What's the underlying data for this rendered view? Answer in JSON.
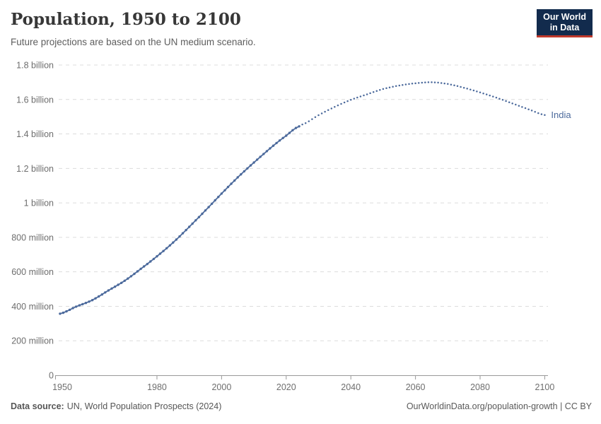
{
  "header": {
    "title": "Population, 1950 to 2100",
    "subtitle": "Future projections are based on the UN medium scenario."
  },
  "logo": {
    "line1": "Our World",
    "line2": "in Data",
    "bg_color": "#122B4D",
    "accent_color": "#C0392B"
  },
  "footer": {
    "source_label": "Data source:",
    "source_value": "UN, World Population Prospects (2024)",
    "credit": "OurWorldinData.org/population-growth | CC BY"
  },
  "chart_data": {
    "type": "line",
    "title": "Population, 1950 to 2100",
    "subtitle": "Future projections are based on the UN medium scenario.",
    "entity_label": "India",
    "color": "#4C6A9C",
    "grid": true,
    "gridline_color": "#dcdcdc",
    "axis_color": "#999999",
    "tick_label_color": "#6e6e6e",
    "xlim": [
      1948.5,
      2101
    ],
    "ylim": [
      0,
      1800
    ],
    "x_ticks": [
      1950,
      1980,
      2000,
      2020,
      2040,
      2060,
      2080,
      2100
    ],
    "y_ticks": [
      {
        "value": 0,
        "label": "0"
      },
      {
        "value": 200,
        "label": "200 million"
      },
      {
        "value": 400,
        "label": "400 million"
      },
      {
        "value": 600,
        "label": "600 million"
      },
      {
        "value": 800,
        "label": "800 million"
      },
      {
        "value": 1000,
        "label": "1 billion"
      },
      {
        "value": 1200,
        "label": "1.2 billion"
      },
      {
        "value": 1400,
        "label": "1.4 billion"
      },
      {
        "value": 1600,
        "label": "1.6 billion"
      },
      {
        "value": 1800,
        "label": "1.8 billion"
      }
    ],
    "unit": "people (millions)",
    "series": [
      {
        "name": "India",
        "segments": [
          {
            "kind": "historical",
            "style": "solid",
            "points_year_millions": [
              [
                1950,
                357
              ],
              [
                1955,
                398
              ],
              [
                1960,
                436
              ],
              [
                1965,
                492
              ],
              [
                1970,
                548
              ],
              [
                1975,
                617
              ],
              [
                1980,
                690
              ],
              [
                1985,
                770
              ],
              [
                1990,
                861
              ],
              [
                1995,
                956
              ],
              [
                2000,
                1054
              ],
              [
                2005,
                1148
              ],
              [
                2010,
                1234
              ],
              [
                2015,
                1316
              ],
              [
                2020,
                1390
              ],
              [
                2024,
                1444
              ]
            ]
          },
          {
            "kind": "projection",
            "style": "dotted",
            "points_year_millions": [
              [
                2024,
                1444
              ],
              [
                2025,
                1455
              ],
              [
                2030,
                1509
              ],
              [
                2035,
                1557
              ],
              [
                2040,
                1598
              ],
              [
                2045,
                1630
              ],
              [
                2050,
                1661
              ],
              [
                2055,
                1681
              ],
              [
                2060,
                1694
              ],
              [
                2065,
                1700
              ],
              [
                2070,
                1690
              ],
              [
                2075,
                1668
              ],
              [
                2080,
                1641
              ],
              [
                2085,
                1611
              ],
              [
                2090,
                1577
              ],
              [
                2095,
                1543
              ],
              [
                2100,
                1510
              ]
            ]
          }
        ]
      }
    ]
  }
}
